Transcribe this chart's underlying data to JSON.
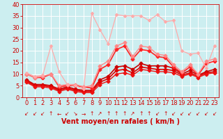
{
  "xlabel": "Vent moyen/en rafales ( km/h )",
  "xlim": [
    -0.5,
    23.5
  ],
  "ylim": [
    0,
    40
  ],
  "xticks": [
    0,
    1,
    2,
    3,
    4,
    5,
    6,
    7,
    8,
    9,
    10,
    11,
    12,
    13,
    14,
    15,
    16,
    17,
    18,
    19,
    20,
    21,
    22,
    23
  ],
  "yticks": [
    0,
    5,
    10,
    15,
    20,
    25,
    30,
    35,
    40
  ],
  "background_color": "#cceef0",
  "grid_color": "#ffffff",
  "series": [
    {
      "x": [
        0,
        1,
        2,
        3,
        4,
        5,
        6,
        7,
        8,
        9,
        10,
        11,
        12,
        13,
        14,
        15,
        16,
        17,
        18,
        19,
        20,
        21,
        22,
        23
      ],
      "y": [
        7.5,
        5.5,
        5.5,
        5.0,
        3.5,
        4.5,
        3.5,
        3.0,
        3.0,
        7.5,
        9.0,
        13.0,
        13.5,
        12.0,
        14.5,
        13.5,
        13.5,
        13.5,
        12.5,
        10.0,
        11.5,
        9.5,
        11.0,
        12.0
      ],
      "color": "#cc0000",
      "linewidth": 1.2,
      "marker": "D",
      "markersize": 2.5
    },
    {
      "x": [
        0,
        1,
        2,
        3,
        4,
        5,
        6,
        7,
        8,
        9,
        10,
        11,
        12,
        13,
        14,
        15,
        16,
        17,
        18,
        19,
        20,
        21,
        22,
        23
      ],
      "y": [
        7.0,
        5.0,
        5.0,
        4.5,
        3.0,
        4.0,
        3.0,
        2.5,
        2.5,
        6.5,
        8.0,
        11.5,
        12.0,
        10.5,
        13.0,
        12.5,
        12.0,
        12.0,
        11.5,
        9.5,
        10.5,
        9.0,
        10.5,
        11.0
      ],
      "color": "#dd0000",
      "linewidth": 1.2,
      "marker": "D",
      "markersize": 2.5
    },
    {
      "x": [
        0,
        1,
        2,
        3,
        4,
        5,
        6,
        7,
        8,
        9,
        10,
        11,
        12,
        13,
        14,
        15,
        16,
        17,
        18,
        19,
        20,
        21,
        22,
        23
      ],
      "y": [
        6.5,
        4.5,
        4.5,
        4.0,
        2.5,
        3.5,
        2.5,
        2.0,
        2.0,
        5.5,
        7.0,
        10.0,
        10.5,
        9.5,
        12.0,
        11.5,
        11.0,
        11.0,
        10.5,
        9.0,
        10.0,
        8.5,
        10.0,
        10.5
      ],
      "color": "#ee1111",
      "linewidth": 1.0,
      "marker": "D",
      "markersize": 2.5
    },
    {
      "x": [
        0,
        1,
        2,
        3,
        4,
        5,
        6,
        7,
        8,
        9,
        10,
        11,
        12,
        13,
        14,
        15,
        16,
        17,
        18,
        19,
        20,
        21,
        22,
        23
      ],
      "y": [
        10.0,
        8.5,
        8.5,
        10.0,
        4.5,
        5.0,
        5.0,
        4.5,
        4.0,
        12.0,
        14.0,
        20.5,
        22.0,
        16.5,
        20.5,
        20.0,
        17.5,
        17.0,
        13.0,
        10.5,
        13.0,
        9.5,
        14.5,
        15.5
      ],
      "color": "#ff2222",
      "linewidth": 1.2,
      "marker": "D",
      "markersize": 2.5
    },
    {
      "x": [
        0,
        1,
        2,
        3,
        4,
        5,
        6,
        7,
        8,
        9,
        10,
        11,
        12,
        13,
        14,
        15,
        16,
        17,
        18,
        19,
        20,
        21,
        22,
        23
      ],
      "y": [
        10.0,
        8.5,
        9.0,
        10.0,
        5.0,
        5.5,
        5.5,
        4.5,
        5.0,
        13.5,
        15.5,
        22.0,
        23.5,
        17.5,
        22.0,
        21.5,
        18.5,
        18.0,
        14.0,
        11.0,
        14.0,
        10.0,
        15.5,
        16.5
      ],
      "color": "#ff8888",
      "linewidth": 1.0,
      "marker": "D",
      "markersize": 2.5
    },
    {
      "x": [
        0,
        1,
        2,
        3,
        4,
        5,
        6,
        7,
        8,
        9,
        10,
        11,
        12,
        13,
        14,
        15,
        16,
        17,
        18,
        19,
        20,
        21,
        22,
        23
      ],
      "y": [
        10.5,
        9.0,
        9.5,
        22.0,
        11.0,
        5.5,
        5.0,
        3.5,
        36.0,
        29.0,
        23.0,
        35.5,
        35.0,
        35.0,
        35.0,
        33.0,
        35.5,
        32.5,
        33.0,
        20.0,
        18.5,
        19.0,
        12.5,
        22.0
      ],
      "color": "#ffaaaa",
      "linewidth": 0.9,
      "marker": "D",
      "markersize": 2.0
    }
  ],
  "arrow_symbols": [
    "↙",
    "↙",
    "↙",
    "↑",
    "←",
    "↙",
    "↘",
    "→",
    "↑",
    "↗",
    "↑",
    "↑",
    "↑",
    "↗",
    "↑",
    "↑",
    "↙",
    "↑",
    "↙",
    "↙",
    "↙",
    "↙",
    "↙",
    "↙"
  ],
  "xlabel_color": "#cc0000",
  "xlabel_fontsize": 7,
  "tick_color": "#cc0000",
  "tick_fontsize": 6,
  "arrow_fontsize": 5.5
}
